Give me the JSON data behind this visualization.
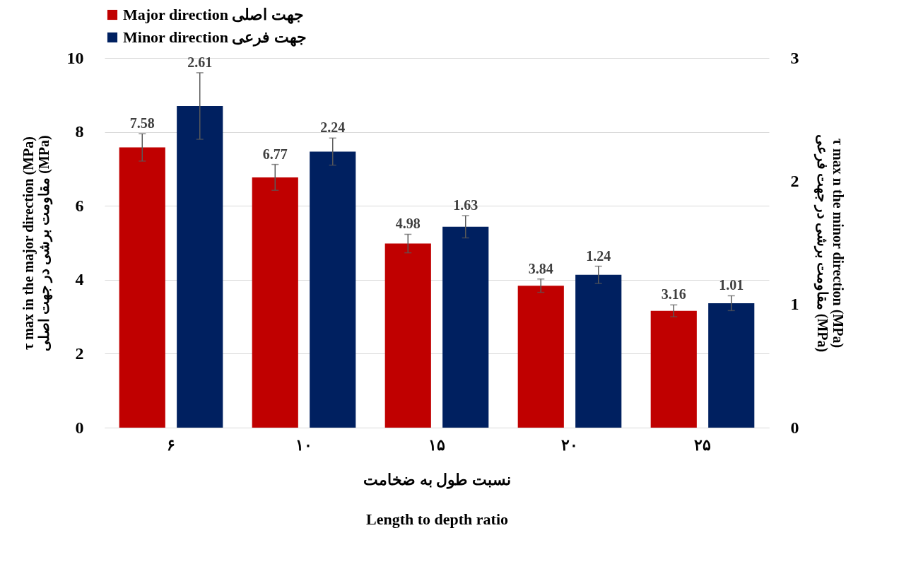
{
  "chart_data": {
    "type": "bar",
    "categories": [
      "۶",
      "۱۰",
      "۱۵",
      "۲۰",
      "۲۵"
    ],
    "series": [
      {
        "name": "Major direction جهت اصلی",
        "color": "#c00000",
        "axis": "y",
        "values": [
          7.58,
          6.77,
          4.98,
          3.84,
          3.16
        ],
        "errors": [
          0.37,
          0.35,
          0.25,
          0.18,
          0.16
        ]
      },
      {
        "name": "Minor direction جهت فرعی",
        "color": "#002060",
        "axis": "y2",
        "values": [
          2.61,
          2.24,
          1.63,
          1.24,
          1.01
        ],
        "errors": [
          0.27,
          0.11,
          0.09,
          0.07,
          0.06
        ]
      }
    ],
    "xlabel": "نسبت طول به ضخامت\nLength to depth ratio",
    "ylabel": "τ max in the major direction (MPa)\nمقاومت برشی در جهت اصلی (MPa)",
    "y2label": "τ max n the minor direction (MPa)\nمقاومت برشی در جهت فرعی (MPa)",
    "ylim": [
      0,
      10
    ],
    "yticks": [
      0,
      2,
      4,
      6,
      8,
      10
    ],
    "y2lim": [
      0,
      3
    ],
    "y2ticks": [
      0,
      1,
      2,
      3
    ],
    "grid": "y",
    "legend": "top",
    "data_labels": true
  }
}
